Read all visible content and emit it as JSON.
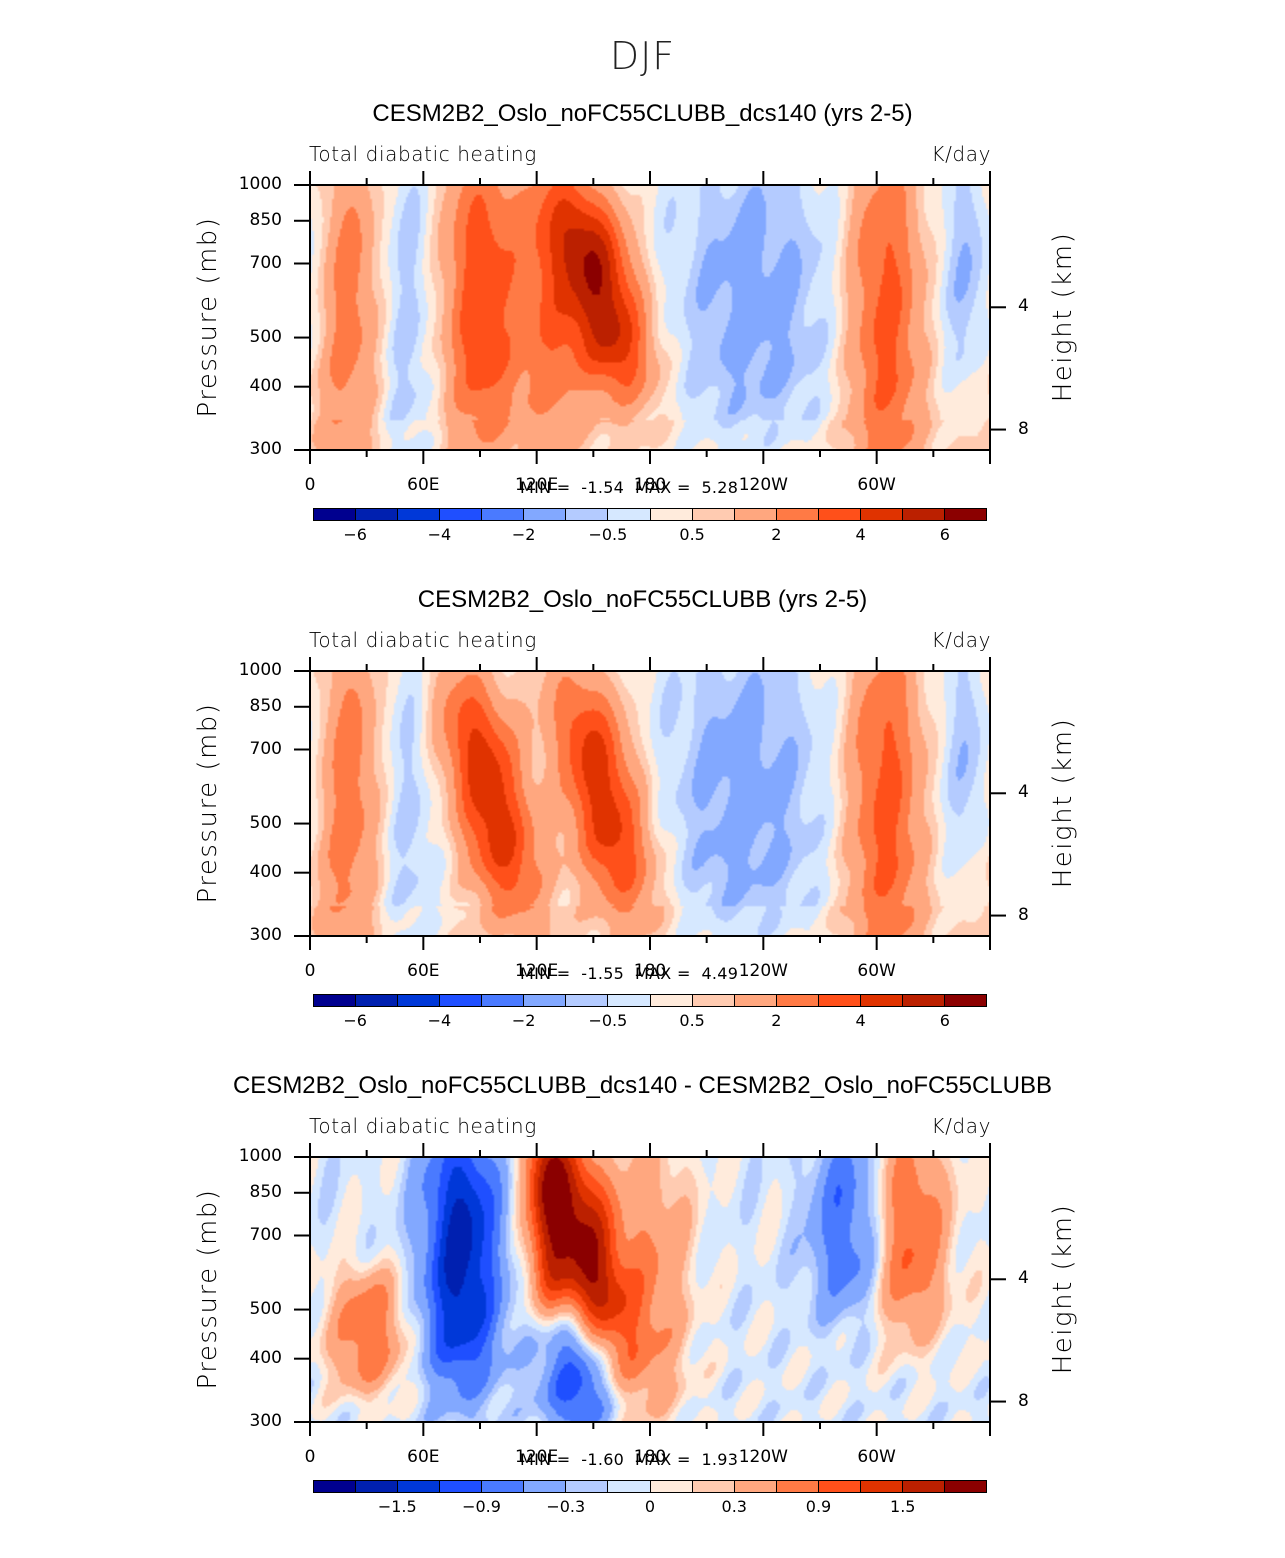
{
  "figure": {
    "title": "DJF"
  },
  "chart_data": [
    {
      "type": "heatmap",
      "title": "CESM2B2_Oslo_noFC55CLUBB_dcs140 (yrs 2-5)",
      "left_string": "Total diabatic heating",
      "right_string": "K/day",
      "xlabel": "",
      "ylabel": "Pressure (mb)",
      "y2label": "Height (km)",
      "x_ticks": [
        "0",
        "60E",
        "120E",
        "180",
        "120W",
        "60W"
      ],
      "x_tick_values": [
        0,
        60,
        120,
        180,
        240,
        300
      ],
      "xlim": [
        0,
        360
      ],
      "y_ticks": [
        "300",
        "400",
        "500",
        "700",
        "850",
        "1000"
      ],
      "y_tick_values": [
        300,
        400,
        500,
        700,
        850,
        1000
      ],
      "ylim": [
        1000,
        300
      ],
      "y2_ticks": [
        "8",
        "4"
      ],
      "y2_tick_values": [
        8,
        4
      ],
      "min_label": "MIN =",
      "min_value": "-1.54",
      "max_label": "MAX =",
      "max_value": "5.28",
      "levels": [
        -7,
        -6,
        -5,
        -4,
        -3,
        -2,
        -1,
        -0.5,
        0,
        0.5,
        1,
        2,
        3,
        4,
        5,
        6,
        7
      ],
      "colorbar_labels": [
        {
          "text": "−6",
          "boundary": 1
        },
        {
          "text": "−4",
          "boundary": 3
        },
        {
          "text": "−2",
          "boundary": 5
        },
        {
          "text": "−0.5",
          "boundary": 7
        },
        {
          "text": "0.5",
          "boundary": 9
        },
        {
          "text": "2",
          "boundary": 11
        },
        {
          "text": "4",
          "boundary": 13
        },
        {
          "text": "6",
          "boundary": 15
        }
      ],
      "features": [
        {
          "desc": "warm column",
          "lon": 20,
          "p_top": 300,
          "p_bot": 900,
          "peak": 2.5
        },
        {
          "desc": "cool column",
          "lon": 48,
          "p_top": 300,
          "p_bot": 1000,
          "peak": -1.2
        },
        {
          "desc": "warm column",
          "lon": 90,
          "p_top": 300,
          "p_bot": 850,
          "peak": 3.5
        },
        {
          "desc": "warm column",
          "lon": 128,
          "p_top": 300,
          "p_bot": 850,
          "peak": 2.5
        },
        {
          "desc": "warm max",
          "lon": 155,
          "p_top": 350,
          "p_bot": 700,
          "peak": 5.28
        },
        {
          "desc": "cool basin",
          "lon": 235,
          "p_top": 300,
          "p_bot": 850,
          "peak": -1.54
        },
        {
          "desc": "warm column",
          "lon": 305,
          "p_top": 300,
          "p_bot": 1000,
          "peak": 3.2
        },
        {
          "desc": "cool column",
          "lon": 352,
          "p_top": 300,
          "p_bot": 650,
          "peak": -1.4
        }
      ]
    },
    {
      "type": "heatmap",
      "title": "CESM2B2_Oslo_noFC55CLUBB (yrs 2-5)",
      "left_string": "Total diabatic heating",
      "right_string": "K/day",
      "xlabel": "",
      "ylabel": "Pressure (mb)",
      "y2label": "Height (km)",
      "x_ticks": [
        "0",
        "60E",
        "120E",
        "180",
        "120W",
        "60W"
      ],
      "x_tick_values": [
        0,
        60,
        120,
        180,
        240,
        300
      ],
      "xlim": [
        0,
        360
      ],
      "y_ticks": [
        "300",
        "400",
        "500",
        "700",
        "850",
        "1000"
      ],
      "y_tick_values": [
        300,
        400,
        500,
        700,
        850,
        1000
      ],
      "ylim": [
        1000,
        300
      ],
      "y2_ticks": [
        "8",
        "4"
      ],
      "y2_tick_values": [
        8,
        4
      ],
      "min_label": "MIN =",
      "min_value": "-1.55",
      "max_label": "MAX =",
      "max_value": "4.49",
      "levels": [
        -7,
        -6,
        -5,
        -4,
        -3,
        -2,
        -1,
        -0.5,
        0,
        0.5,
        1,
        2,
        3,
        4,
        5,
        6,
        7
      ],
      "colorbar_labels": [
        {
          "text": "−6",
          "boundary": 1
        },
        {
          "text": "−4",
          "boundary": 3
        },
        {
          "text": "−2",
          "boundary": 5
        },
        {
          "text": "−0.5",
          "boundary": 7
        },
        {
          "text": "0.5",
          "boundary": 9
        },
        {
          "text": "2",
          "boundary": 11
        },
        {
          "text": "4",
          "boundary": 13
        },
        {
          "text": "6",
          "boundary": 15
        }
      ],
      "features": [
        {
          "desc": "warm column",
          "lon": 20,
          "p_top": 300,
          "p_bot": 900,
          "peak": 2.6
        },
        {
          "desc": "cool column",
          "lon": 48,
          "p_top": 300,
          "p_bot": 1000,
          "peak": -1.1
        },
        {
          "desc": "warm max",
          "lon": 95,
          "p_top": 350,
          "p_bot": 800,
          "peak": 4.49
        },
        {
          "desc": "warm max",
          "lon": 155,
          "p_top": 350,
          "p_bot": 800,
          "peak": 4.4
        },
        {
          "desc": "cool basin",
          "lon": 230,
          "p_top": 300,
          "p_bot": 900,
          "peak": -1.55
        },
        {
          "desc": "warm column",
          "lon": 305,
          "p_top": 300,
          "p_bot": 1000,
          "peak": 3.2
        },
        {
          "desc": "cool column",
          "lon": 352,
          "p_top": 300,
          "p_bot": 650,
          "peak": -1.3
        }
      ]
    },
    {
      "type": "heatmap",
      "title": "CESM2B2_Oslo_noFC55CLUBB_dcs140 - CESM2B2_Oslo_noFC55CLUBB",
      "left_string": "Total diabatic heating",
      "right_string": "K/day",
      "xlabel": "",
      "ylabel": "Pressure (mb)",
      "y2label": "Height (km)",
      "x_ticks": [
        "0",
        "60E",
        "120E",
        "180",
        "120W",
        "60W"
      ],
      "x_tick_values": [
        0,
        60,
        120,
        180,
        240,
        300
      ],
      "xlim": [
        0,
        360
      ],
      "y_ticks": [
        "300",
        "400",
        "500",
        "700",
        "850",
        "1000"
      ],
      "y_tick_values": [
        300,
        400,
        500,
        700,
        850,
        1000
      ],
      "ylim": [
        1000,
        300
      ],
      "y2_ticks": [
        "8",
        "4"
      ],
      "y2_tick_values": [
        8,
        4
      ],
      "min_label": "MIN =",
      "min_value": "-1.60",
      "max_label": "MAX =",
      "max_value": "1.93",
      "levels": [
        -2.1,
        -1.8,
        -1.5,
        -1.2,
        -0.9,
        -0.6,
        -0.3,
        -0.15,
        0,
        0.15,
        0.3,
        0.6,
        0.9,
        1.2,
        1.5,
        1.8,
        2.1
      ],
      "colorbar_labels": [
        {
          "text": "−1.5",
          "boundary": 2
        },
        {
          "text": "−0.9",
          "boundary": 4
        },
        {
          "text": "−0.3",
          "boundary": 6
        },
        {
          "text": "0",
          "boundary": 8
        },
        {
          "text": "0.3",
          "boundary": 10
        },
        {
          "text": "0.9",
          "boundary": 12
        },
        {
          "text": "1.5",
          "boundary": 14
        }
      ],
      "features": [
        {
          "desc": "warm blob",
          "lon": 30,
          "p_top": 550,
          "p_bot": 800,
          "peak": 0.9
        },
        {
          "desc": "cool max",
          "lon": 80,
          "p_top": 300,
          "p_bot": 750,
          "peak": -1.6
        },
        {
          "desc": "warm narrow",
          "lon": 125,
          "p_top": 300,
          "p_bot": 550,
          "peak": 1.0
        },
        {
          "desc": "warm max",
          "lon": 145,
          "p_top": 300,
          "p_bot": 700,
          "peak": 1.93
        },
        {
          "desc": "cool column",
          "lon": 143,
          "p_top": 650,
          "p_bot": 950,
          "peak": -1.2
        },
        {
          "desc": "warm column",
          "lon": 182,
          "p_top": 300,
          "p_bot": 850,
          "peak": 0.6
        },
        {
          "desc": "cool column",
          "lon": 285,
          "p_top": 300,
          "p_bot": 550,
          "peak": -0.8
        },
        {
          "desc": "warm column",
          "lon": 318,
          "p_top": 300,
          "p_bot": 600,
          "peak": 1.0
        }
      ]
    }
  ],
  "colormap": [
    "#00008f",
    "#0020b0",
    "#0038d8",
    "#1f4fff",
    "#4a7aff",
    "#82a8ff",
    "#b4cbff",
    "#d6e8ff",
    "#ffebdc",
    "#ffcbb1",
    "#ffa77f",
    "#ff7a45",
    "#ff501a",
    "#e03300",
    "#bb2000",
    "#8b0000"
  ]
}
